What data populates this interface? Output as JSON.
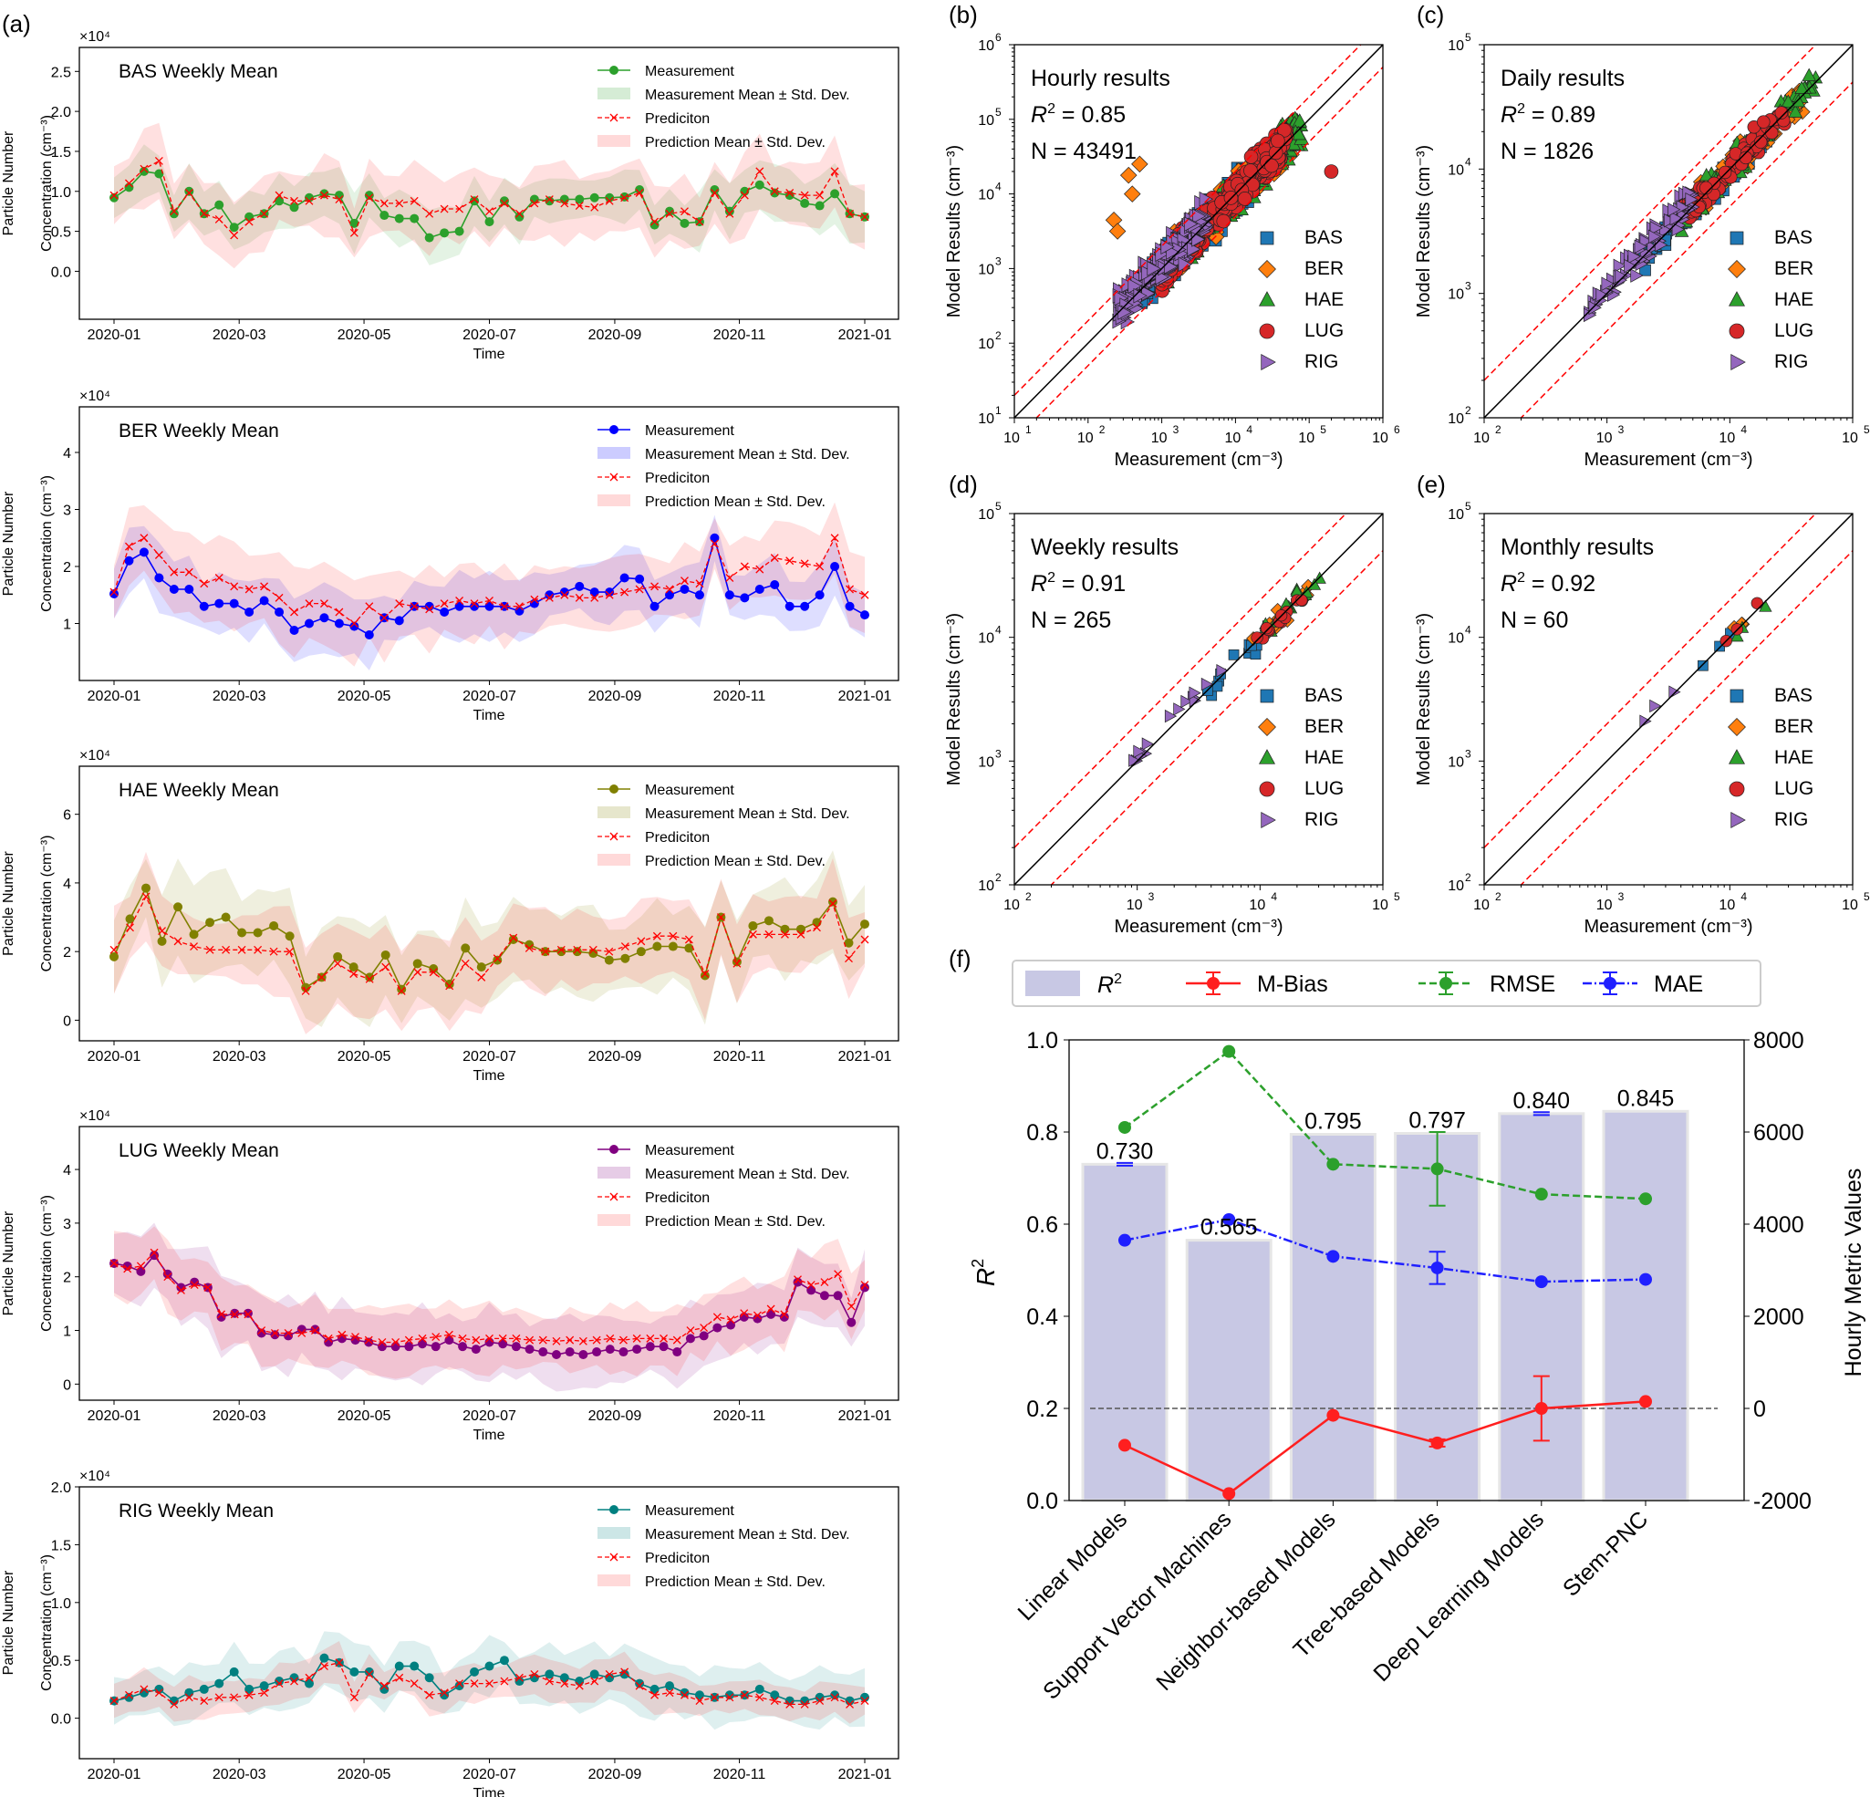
{
  "chart_data": [
    {
      "panel": "(a)",
      "type": "line",
      "title": "BAS Weekly Mean",
      "station": "BAS",
      "color": "#2ca02c",
      "multiplier": "×10⁴",
      "ylabel": [
        "Particle Number",
        "Concentration (cm⁻³)"
      ],
      "xlabel": "Time",
      "ylim": [
        -0.6,
        2.8
      ],
      "yticks": [
        "0.0",
        "0.5",
        "1.0",
        "1.5",
        "2.0",
        "2.5"
      ],
      "ytickvals": [
        0,
        0.5,
        1,
        1.5,
        2,
        2.5
      ],
      "xticks": [
        "2020-01",
        "2020-03",
        "2020-05",
        "2020-07",
        "2020-09",
        "2020-11",
        "2021-01"
      ],
      "legend": [
        "Measurement",
        "Measurement Mean ± Std. Dev.",
        "Prediciton",
        "Prediction Mean ± Std. Dev."
      ],
      "measurement": [
        0.92,
        1.05,
        1.25,
        1.22,
        0.72,
        1.0,
        0.72,
        0.83,
        0.55,
        0.68,
        0.72,
        0.88,
        0.8,
        0.92,
        0.97,
        0.95,
        0.6,
        0.95,
        0.7,
        0.66,
        0.66,
        0.42,
        0.48,
        0.5,
        0.88,
        0.62,
        0.88,
        0.68,
        0.9,
        0.88,
        0.9,
        0.9,
        0.92,
        0.92,
        0.93,
        1.02,
        0.58,
        0.75,
        0.6,
        0.62,
        1.02,
        0.75,
        1.0,
        1.08,
        0.98,
        0.95,
        0.85,
        0.82,
        0.97,
        0.72,
        0.68
      ],
      "prediction": [
        0.95,
        1.1,
        1.28,
        1.38,
        0.75,
        0.98,
        0.72,
        0.65,
        0.45,
        0.62,
        0.72,
        0.95,
        0.88,
        0.88,
        0.95,
        0.9,
        0.48,
        0.92,
        0.85,
        0.85,
        0.88,
        0.72,
        0.78,
        0.78,
        0.9,
        0.75,
        0.85,
        0.72,
        0.85,
        0.9,
        0.85,
        0.82,
        0.8,
        0.88,
        0.92,
        0.98,
        0.62,
        0.72,
        0.75,
        0.62,
        0.98,
        0.72,
        0.95,
        1.25,
        1.0,
        0.98,
        0.95,
        0.95,
        1.25,
        0.72,
        0.68
      ],
      "meas_std": 0.3,
      "pred_std": 0.42
    },
    {
      "panel": "",
      "type": "line",
      "title": "BER Weekly Mean",
      "station": "BER",
      "color": "#0000ff",
      "multiplier": "×10⁴",
      "ylabel": [
        "Particle Number",
        "Concentration (cm⁻³)"
      ],
      "xlabel": "Time",
      "ylim": [
        0.0,
        4.8
      ],
      "yticks": [
        "1",
        "2",
        "3",
        "4"
      ],
      "ytickvals": [
        1,
        2,
        3,
        4
      ],
      "xticks": [
        "2020-01",
        "2020-03",
        "2020-05",
        "2020-07",
        "2020-09",
        "2020-11",
        "2021-01"
      ],
      "legend": [
        "Measurement",
        "Measurement Mean ± Std. Dev.",
        "Prediciton",
        "Prediction Mean ± Std. Dev."
      ],
      "measurement": [
        1.52,
        2.1,
        2.25,
        1.8,
        1.6,
        1.6,
        1.3,
        1.35,
        1.35,
        1.2,
        1.4,
        1.2,
        0.88,
        1.0,
        1.1,
        1.0,
        0.95,
        0.8,
        1.1,
        1.05,
        1.3,
        1.3,
        1.2,
        1.3,
        1.3,
        1.3,
        1.3,
        1.22,
        1.35,
        1.5,
        1.55,
        1.65,
        1.55,
        1.55,
        1.8,
        1.78,
        1.3,
        1.5,
        1.6,
        1.5,
        2.5,
        1.5,
        1.45,
        1.6,
        1.68,
        1.3,
        1.3,
        1.5,
        2.0,
        1.3,
        1.15
      ],
      "prediction": [
        1.55,
        2.35,
        2.5,
        2.2,
        1.9,
        1.9,
        1.7,
        1.8,
        1.65,
        1.6,
        1.65,
        1.45,
        1.2,
        1.35,
        1.35,
        1.2,
        1.0,
        1.3,
        1.1,
        1.35,
        1.3,
        1.25,
        1.35,
        1.4,
        1.35,
        1.4,
        1.3,
        1.3,
        1.42,
        1.45,
        1.5,
        1.45,
        1.45,
        1.5,
        1.55,
        1.6,
        1.65,
        1.6,
        1.75,
        1.7,
        2.4,
        1.8,
        2.0,
        1.95,
        2.15,
        2.1,
        2.05,
        2.0,
        2.5,
        1.6,
        1.5
      ],
      "meas_std": 0.5,
      "pred_std": 0.62
    },
    {
      "panel": "",
      "type": "line",
      "title": "HAE Weekly Mean",
      "station": "HAE",
      "color": "#808000",
      "multiplier": "×10⁴",
      "ylabel": [
        "Particle Number",
        "Concentration (cm⁻³)"
      ],
      "xlabel": "Time",
      "ylim": [
        -0.6,
        7.4
      ],
      "yticks": [
        "0",
        "2",
        "4",
        "6"
      ],
      "ytickvals": [
        0,
        2,
        4,
        6
      ],
      "xticks": [
        "2020-01",
        "2020-03",
        "2020-05",
        "2020-07",
        "2020-09",
        "2020-11",
        "2021-01"
      ],
      "legend": [
        "Measurement",
        "Measurement Mean ± Std. Dev.",
        "Prediciton",
        "Prediction Mean ± Std. Dev."
      ],
      "measurement": [
        1.85,
        2.95,
        3.85,
        2.3,
        3.3,
        2.5,
        2.85,
        3.0,
        2.55,
        2.55,
        2.75,
        2.45,
        0.95,
        1.25,
        1.85,
        1.55,
        1.25,
        1.9,
        0.9,
        1.65,
        1.5,
        1.05,
        2.1,
        1.55,
        1.75,
        2.35,
        2.2,
        2.0,
        2.0,
        2.0,
        1.95,
        1.75,
        1.8,
        2.0,
        2.15,
        2.15,
        2.1,
        1.3,
        3.0,
        1.7,
        2.75,
        2.9,
        2.65,
        2.65,
        2.85,
        3.45,
        2.25,
        2.8
      ],
      "prediction": [
        2.05,
        2.7,
        3.6,
        2.6,
        2.3,
        2.15,
        2.05,
        2.05,
        2.05,
        2.05,
        2.0,
        2.0,
        0.85,
        1.25,
        1.65,
        1.35,
        1.2,
        1.55,
        0.85,
        1.4,
        1.4,
        1.0,
        1.65,
        1.25,
        1.8,
        2.4,
        2.1,
        2.0,
        2.05,
        2.05,
        2.05,
        2.0,
        2.15,
        2.3,
        2.45,
        2.45,
        2.35,
        1.35,
        3.0,
        1.65,
        2.5,
        2.5,
        2.5,
        2.5,
        2.7,
        3.4,
        1.8,
        2.35
      ],
      "meas_std": 1.2,
      "pred_std": 1.05
    },
    {
      "panel": "",
      "type": "line",
      "title": "LUG Weekly Mean",
      "station": "LUG",
      "color": "#800080",
      "multiplier": "×10⁴",
      "ylabel": [
        "Particle Number",
        "Concentration (cm⁻³)"
      ],
      "xlabel": "Time",
      "ylim": [
        -0.3,
        4.8
      ],
      "yticks": [
        "0",
        "1",
        "2",
        "3",
        "4"
      ],
      "ytickvals": [
        0,
        1,
        2,
        3,
        4
      ],
      "xticks": [
        "2020-01",
        "2020-03",
        "2020-05",
        "2020-07",
        "2020-09",
        "2020-11",
        "2021-01"
      ],
      "legend": [
        "Measurement",
        "Measurement Mean ± Std. Dev.",
        "Prediciton",
        "Prediction Mean ± Std. Dev."
      ],
      "measurement": [
        2.25,
        2.2,
        2.1,
        2.4,
        2.05,
        1.8,
        1.9,
        1.8,
        1.25,
        1.32,
        1.32,
        0.95,
        0.92,
        0.9,
        1.02,
        1.02,
        0.78,
        0.85,
        0.82,
        0.78,
        0.7,
        0.7,
        0.7,
        0.75,
        0.7,
        0.82,
        0.7,
        0.65,
        0.78,
        0.75,
        0.7,
        0.65,
        0.6,
        0.55,
        0.6,
        0.55,
        0.6,
        0.65,
        0.6,
        0.65,
        0.7,
        0.7,
        0.6,
        0.85,
        0.9,
        1.05,
        1.1,
        1.25,
        1.22,
        1.3,
        1.25,
        1.9,
        1.75,
        1.65,
        1.65,
        1.15,
        1.8
      ],
      "prediction": [
        2.25,
        2.15,
        2.2,
        2.45,
        2.0,
        1.75,
        1.85,
        1.8,
        1.3,
        1.3,
        1.3,
        1.0,
        0.95,
        0.95,
        0.95,
        1.0,
        0.85,
        0.92,
        0.88,
        0.82,
        0.78,
        0.78,
        0.82,
        0.85,
        0.88,
        0.92,
        0.85,
        0.82,
        0.85,
        0.85,
        0.85,
        0.82,
        0.82,
        0.8,
        0.82,
        0.8,
        0.82,
        0.85,
        0.82,
        0.85,
        0.85,
        0.85,
        0.82,
        1.0,
        1.05,
        1.25,
        1.2,
        1.32,
        1.28,
        1.4,
        1.3,
        1.95,
        1.85,
        1.9,
        2.05,
        1.45,
        1.85
      ],
      "meas_std": 0.6,
      "pred_std": 0.55
    },
    {
      "panel": "",
      "type": "line",
      "title": "RIG Weekly Mean",
      "station": "RIG",
      "color": "#008080",
      "multiplier": "×10⁴",
      "ylabel": [
        "Particle Number",
        "Concentration (cm⁻³)"
      ],
      "xlabel": "Time",
      "ylim": [
        -0.35,
        2.0
      ],
      "yticks": [
        "0.0",
        "0.5",
        "1.0",
        "1.5",
        "2.0"
      ],
      "ytickvals": [
        0,
        0.5,
        1,
        1.5,
        2
      ],
      "xticks": [
        "2020-01",
        "2020-03",
        "2020-05",
        "2020-07",
        "2020-09",
        "2020-11",
        "2021-01"
      ],
      "legend": [
        "Measurement",
        "Measurement Mean ± Std. Dev.",
        "Prediciton",
        "Prediction Mean ± Std. Dev."
      ],
      "measurement": [
        0.15,
        0.18,
        0.22,
        0.25,
        0.15,
        0.22,
        0.25,
        0.3,
        0.4,
        0.25,
        0.28,
        0.32,
        0.35,
        0.3,
        0.52,
        0.48,
        0.4,
        0.4,
        0.25,
        0.45,
        0.45,
        0.35,
        0.2,
        0.28,
        0.4,
        0.45,
        0.5,
        0.32,
        0.35,
        0.38,
        0.35,
        0.32,
        0.38,
        0.35,
        0.38,
        0.3,
        0.25,
        0.28,
        0.22,
        0.2,
        0.18,
        0.2,
        0.2,
        0.25,
        0.2,
        0.15,
        0.15,
        0.18,
        0.2,
        0.15,
        0.18
      ],
      "prediction": [
        0.15,
        0.2,
        0.25,
        0.22,
        0.12,
        0.18,
        0.15,
        0.18,
        0.18,
        0.2,
        0.22,
        0.3,
        0.32,
        0.35,
        0.45,
        0.48,
        0.18,
        0.38,
        0.28,
        0.35,
        0.3,
        0.2,
        0.22,
        0.3,
        0.3,
        0.3,
        0.32,
        0.35,
        0.38,
        0.32,
        0.3,
        0.28,
        0.32,
        0.38,
        0.4,
        0.28,
        0.2,
        0.22,
        0.2,
        0.15,
        0.18,
        0.18,
        0.2,
        0.18,
        0.15,
        0.12,
        0.12,
        0.15,
        0.18,
        0.12,
        0.15
      ],
      "meas_std": 0.22,
      "pred_std": 0.15
    },
    {
      "panel": "(b)",
      "type": "scatter",
      "title": "Hourly results",
      "r2": "= 0.85",
      "n": "N = 43491",
      "xlabel": "Measurement (cm⁻³)",
      "ylabel": "Model Results (cm⁻³)",
      "xlim_log10": [
        1,
        6
      ],
      "ylim_log10": [
        1,
        6
      ],
      "xtick_exps": [
        "1",
        "2",
        "3",
        "4",
        "5",
        "6"
      ],
      "legend": [
        "BAS",
        "BER",
        "HAE",
        "LUG",
        "RIG"
      ]
    },
    {
      "panel": "(c)",
      "type": "scatter",
      "title": "Daily results",
      "r2": "= 0.89",
      "n": "N = 1826",
      "xlabel": "Measurement (cm⁻³)",
      "ylabel": "Model Results (cm⁻³)",
      "xlim_log10": [
        2,
        5
      ],
      "ylim_log10": [
        2,
        5
      ],
      "xtick_exps": [
        "2",
        "3",
        "4",
        "5"
      ],
      "legend": [
        "BAS",
        "BER",
        "HAE",
        "LUG",
        "RIG"
      ]
    },
    {
      "panel": "(d)",
      "type": "scatter",
      "title": "Weekly results",
      "r2": "= 0.91",
      "n": "N = 265",
      "xlabel": "Measurement (cm⁻³)",
      "ylabel": "Model Results (cm⁻³)",
      "xlim_log10": [
        2,
        5
      ],
      "ylim_log10": [
        2,
        5
      ],
      "xtick_exps": [
        "2",
        "3",
        "4",
        "5"
      ],
      "legend": [
        "BAS",
        "BER",
        "HAE",
        "LUG",
        "RIG"
      ]
    },
    {
      "panel": "(e)",
      "type": "scatter",
      "title": "Monthly results",
      "r2": "= 0.92",
      "n": "N = 60",
      "xlabel": "Measurement (cm⁻³)",
      "ylabel": "Model Results (cm⁻³)",
      "xlim_log10": [
        2,
        5
      ],
      "ylim_log10": [
        2,
        5
      ],
      "xtick_exps": [
        "2",
        "3",
        "4",
        "5"
      ],
      "legend": [
        "BAS",
        "BER",
        "HAE",
        "LUG",
        "RIG"
      ]
    },
    {
      "panel": "(f)",
      "type": "bar",
      "title": "",
      "categories": [
        "Linear Models",
        "Support Vector Machines",
        "Neighbor-based Models",
        "Tree-based Models",
        "Deep Learning Models",
        "Stem-PNC"
      ],
      "r2": [
        0.73,
        0.565,
        0.795,
        0.797,
        0.84,
        0.845
      ],
      "r2_labels": [
        "0.730",
        "0.565",
        "0.795",
        "0.797",
        "0.840",
        "0.845"
      ],
      "r2_err": [
        0.003,
        0.0,
        0.0,
        0.0,
        0.003,
        0.0
      ],
      "mbias": [
        -800,
        -1850,
        -150,
        -750,
        0,
        150
      ],
      "mbias_err": [
        0,
        0,
        0,
        80,
        700,
        0
      ],
      "rmse": [
        6100,
        7750,
        5300,
        5200,
        4650,
        4550
      ],
      "rmse_err": [
        0,
        0,
        0,
        800,
        0,
        0
      ],
      "mae": [
        3650,
        4100,
        3300,
        3050,
        2750,
        2800
      ],
      "mae_err": [
        0,
        0,
        0,
        350,
        0,
        0
      ],
      "ylabel": "R",
      "y2label": "Hourly Metric Values",
      "ylim": [
        0,
        1
      ],
      "y2lim": [
        -2000,
        8000
      ],
      "yticks": [
        "0.0",
        "0.2",
        "0.4",
        "0.6",
        "0.8",
        "1.0"
      ],
      "y2ticks": [
        "-2000",
        "0",
        "2000",
        "4000",
        "6000",
        "8000"
      ],
      "legend": [
        "R",
        "M-Bias",
        "RMSE",
        "MAE"
      ]
    }
  ],
  "colors": {
    "BAS": "#1f77b4",
    "BER": "#ff7f0e",
    "HAE": "#2ca02c",
    "LUG": "#d62728",
    "RIG": "#9467bd",
    "prediction": "#ff0000",
    "bar": "#c8c8e4",
    "rmse": "#2ca02c",
    "mae": "#1f1fff",
    "mbias": "#ff1f1f"
  }
}
